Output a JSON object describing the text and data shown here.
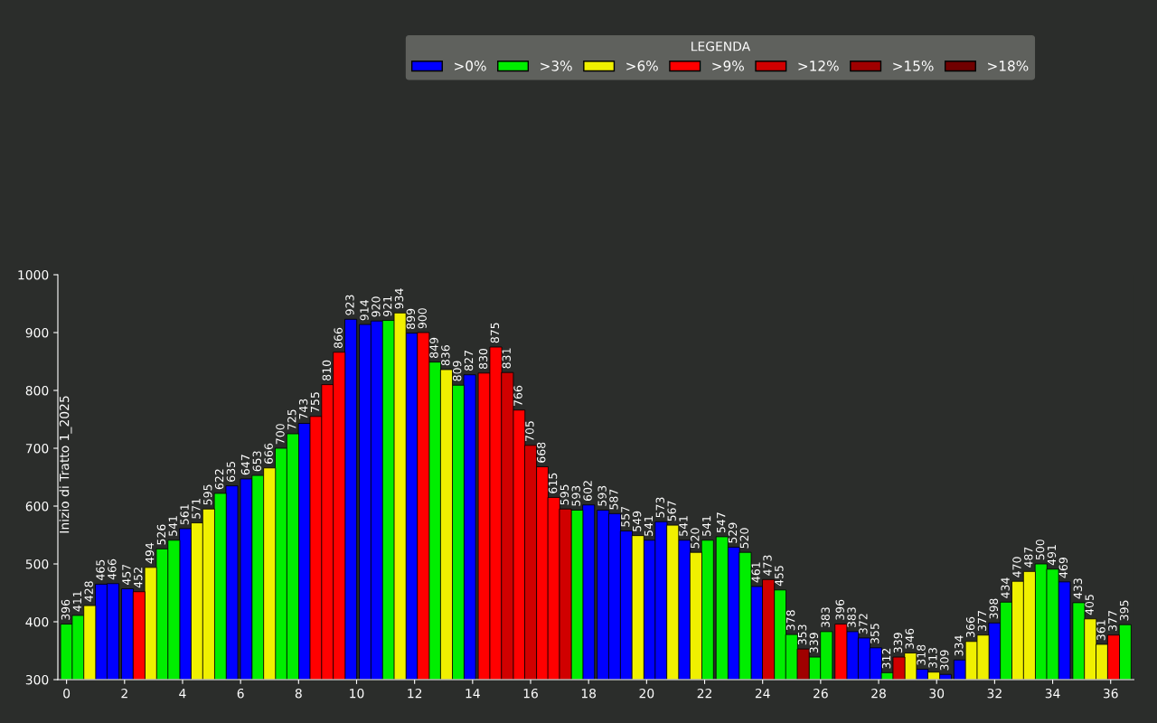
{
  "chart_data": {
    "type": "bar",
    "annotations": [
      "Inizio di Tratto 1_2025"
    ],
    "legend_title": "LEGENDA",
    "legend": "top right",
    "xlim": [
      -0.3,
      36.8
    ],
    "xticks": [
      0,
      2,
      4,
      6,
      8,
      10,
      12,
      14,
      16,
      18,
      20,
      22,
      24,
      26,
      28,
      30,
      32,
      34,
      36
    ],
    "ylim": [
      300,
      1000
    ],
    "yticks": [
      300,
      400,
      500,
      600,
      700,
      800,
      900,
      1000
    ],
    "grid": false,
    "data_labels": true,
    "series": [
      {
        "name": ">0%",
        "color": "#0000ff",
        "x": [
          1.2,
          1.6,
          2.1,
          4.1,
          5.7,
          6.2,
          8.2,
          9.8,
          10.3,
          10.7,
          11.9,
          13.9,
          18.0,
          18.5,
          18.9,
          19.3,
          20.1,
          20.5,
          21.3,
          23.0,
          23.8,
          27.1,
          27.5,
          27.9,
          29.5,
          30.3,
          30.8,
          32.0,
          34.4
        ],
        "values": [
          465,
          466,
          457,
          561,
          635,
          647,
          743,
          923,
          914,
          920,
          899,
          827,
          602,
          593,
          587,
          557,
          541,
          573,
          541,
          529,
          461,
          383,
          372,
          355,
          318,
          309,
          334,
          398,
          469
        ]
      },
      {
        "name": ">3%",
        "color": "#00ee00",
        "x": [
          0,
          0.4,
          3.3,
          3.7,
          5.3,
          6.6,
          7.4,
          7.8,
          11.1,
          12.7,
          13.5,
          17.6,
          22.1,
          22.6,
          23.4,
          24.6,
          25.0,
          25.8,
          26.2,
          28.3,
          32.4,
          33.6,
          34.0,
          34.9,
          36.5
        ],
        "values": [
          396,
          411,
          526,
          541,
          622,
          653,
          700,
          725,
          921,
          849,
          809,
          593,
          541,
          547,
          520,
          455,
          378,
          339,
          383,
          312,
          434,
          500,
          491,
          433,
          395
        ]
      },
      {
        "name": ">6%",
        "color": "#f0f000",
        "x": [
          0.8,
          2.9,
          4.5,
          4.9,
          7.0,
          11.5,
          13.1,
          19.7,
          20.9,
          21.7,
          29.1,
          29.9,
          31.2,
          31.6,
          32.8,
          33.2,
          35.3,
          35.7
        ],
        "values": [
          428,
          494,
          571,
          595,
          666,
          934,
          836,
          549,
          567,
          520,
          346,
          313,
          366,
          377,
          470,
          487,
          405,
          361
        ]
      },
      {
        "name": ">9%",
        "color": "#ff0000",
        "x": [
          2.5,
          8.6,
          9.0,
          9.4,
          12.3,
          14.4,
          14.8,
          15.6,
          16.4,
          16.8,
          26.7,
          36.1
        ],
        "values": [
          452,
          755,
          810,
          866,
          900,
          830,
          875,
          766,
          668,
          615,
          396,
          377
        ]
      },
      {
        "name": ">12%",
        "color": "#d00000",
        "x": [
          15.2,
          16.0,
          17.2,
          24.2,
          28.7
        ],
        "values": [
          831,
          705,
          595,
          473,
          339
        ]
      },
      {
        "name": ">15%",
        "color": "#a00000",
        "x": [
          25.4
        ],
        "values": [
          353
        ]
      },
      {
        "name": ">18%",
        "color": "#700000"
      }
    ]
  }
}
